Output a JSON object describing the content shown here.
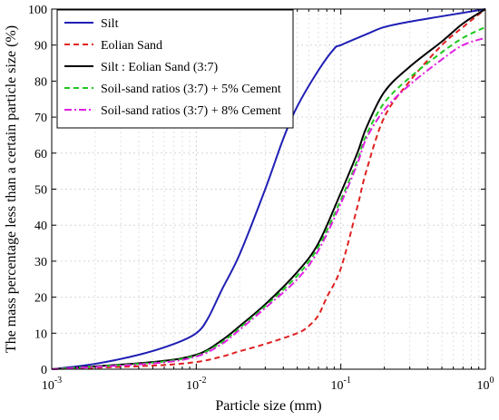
{
  "chart_data": {
    "type": "line",
    "title": "",
    "xlabel": "Particle size (mm)",
    "ylabel": "The mass percentage less than a certain particle size (%)",
    "xscale": "log",
    "xlim": [
      0.001,
      1
    ],
    "ylim": [
      0,
      100
    ],
    "grid": true,
    "legend_position": "top-left",
    "xticks": [
      {
        "value": 0.001,
        "base": "10",
        "exp": "-3"
      },
      {
        "value": 0.01,
        "base": "10",
        "exp": "-2"
      },
      {
        "value": 0.1,
        "base": "10",
        "exp": "-1"
      },
      {
        "value": 1,
        "base": "10",
        "exp": "0"
      }
    ],
    "yticks": [
      {
        "value": 0,
        "label": "0"
      },
      {
        "value": 10,
        "label": "10"
      },
      {
        "value": 20,
        "label": "20"
      },
      {
        "value": 30,
        "label": "30"
      },
      {
        "value": 40,
        "label": "40"
      },
      {
        "value": 50,
        "label": "50"
      },
      {
        "value": 60,
        "label": "60"
      },
      {
        "value": 70,
        "label": "70"
      },
      {
        "value": 80,
        "label": "80"
      },
      {
        "value": 90,
        "label": "90"
      },
      {
        "value": 100,
        "label": "100"
      }
    ],
    "series": [
      {
        "name": "Silt",
        "color": "#1f1fb4",
        "dash": "solid",
        "points": [
          [
            0.001,
            0
          ],
          [
            0.002,
            1.5
          ],
          [
            0.004,
            4
          ],
          [
            0.007,
            7
          ],
          [
            0.01,
            10
          ],
          [
            0.012,
            14
          ],
          [
            0.015,
            22
          ],
          [
            0.02,
            32
          ],
          [
            0.03,
            50
          ],
          [
            0.04,
            64
          ],
          [
            0.05,
            73
          ],
          [
            0.07,
            83
          ],
          [
            0.09,
            89
          ],
          [
            0.1,
            90
          ],
          [
            0.15,
            93
          ],
          [
            0.2,
            95
          ],
          [
            0.3,
            96.5
          ],
          [
            0.5,
            98
          ],
          [
            1,
            100
          ]
        ]
      },
      {
        "name": "Eolian Sand",
        "color": "#e02020",
        "dash": "dashed",
        "points": [
          [
            0.001,
            0
          ],
          [
            0.005,
            1
          ],
          [
            0.01,
            2
          ],
          [
            0.015,
            3.5
          ],
          [
            0.02,
            5
          ],
          [
            0.03,
            7
          ],
          [
            0.05,
            10
          ],
          [
            0.06,
            12
          ],
          [
            0.07,
            15
          ],
          [
            0.08,
            20
          ],
          [
            0.1,
            28
          ],
          [
            0.13,
            45
          ],
          [
            0.15,
            55
          ],
          [
            0.2,
            70
          ],
          [
            0.3,
            80
          ],
          [
            0.5,
            90
          ],
          [
            0.7,
            95
          ],
          [
            1,
            100
          ]
        ]
      },
      {
        "name": "Silt : Eolian Sand (3:7)",
        "color": "#000000",
        "dash": "solid",
        "points": [
          [
            0.001,
            0
          ],
          [
            0.005,
            2
          ],
          [
            0.01,
            4
          ],
          [
            0.015,
            8
          ],
          [
            0.02,
            12
          ],
          [
            0.03,
            18
          ],
          [
            0.05,
            27
          ],
          [
            0.07,
            35
          ],
          [
            0.1,
            49
          ],
          [
            0.13,
            60
          ],
          [
            0.15,
            67
          ],
          [
            0.2,
            77
          ],
          [
            0.3,
            84
          ],
          [
            0.5,
            91
          ],
          [
            0.7,
            96
          ],
          [
            1,
            100
          ]
        ]
      },
      {
        "name": "Soil-sand ratios (3:7) + 5% Cement",
        "color": "#20c820",
        "dash": "dashed",
        "points": [
          [
            0.001,
            0
          ],
          [
            0.005,
            1.8
          ],
          [
            0.01,
            3.8
          ],
          [
            0.015,
            7.5
          ],
          [
            0.02,
            11.5
          ],
          [
            0.03,
            17.5
          ],
          [
            0.05,
            26
          ],
          [
            0.07,
            34
          ],
          [
            0.1,
            47
          ],
          [
            0.13,
            58
          ],
          [
            0.15,
            65
          ],
          [
            0.2,
            74
          ],
          [
            0.3,
            81
          ],
          [
            0.5,
            88
          ],
          [
            0.7,
            92
          ],
          [
            1,
            95
          ]
        ]
      },
      {
        "name": "Soil-sand ratios (3:7) + 8% Cement",
        "color": "#e020e0",
        "dash": "dashdot",
        "points": [
          [
            0.001,
            0
          ],
          [
            0.005,
            1.6
          ],
          [
            0.01,
            3.5
          ],
          [
            0.015,
            7
          ],
          [
            0.02,
            11
          ],
          [
            0.03,
            17
          ],
          [
            0.05,
            25
          ],
          [
            0.07,
            33
          ],
          [
            0.1,
            46
          ],
          [
            0.13,
            57
          ],
          [
            0.15,
            64
          ],
          [
            0.2,
            72
          ],
          [
            0.3,
            79
          ],
          [
            0.5,
            86
          ],
          [
            0.7,
            90
          ],
          [
            1,
            92
          ]
        ]
      }
    ]
  }
}
